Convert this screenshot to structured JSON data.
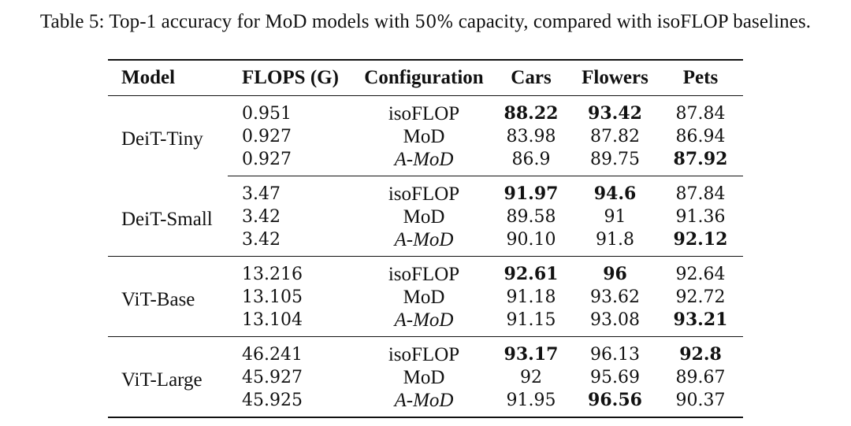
{
  "caption": {
    "prefix": "Table 5: Top-1 accuracy for MoD models with ",
    "percent": "50%",
    "suffix": " capacity, compared with isoFLOP baselines."
  },
  "table": {
    "headers": {
      "model": "Model",
      "flops": "FLOPS (G)",
      "configuration": "Configuration",
      "cars": "Cars",
      "flowers": "Flowers",
      "pets": "Pets"
    },
    "groups": [
      {
        "model": "DeiT-Tiny",
        "rows": [
          {
            "flops": "0.951",
            "config": "isoFLOP",
            "cars": "88.22",
            "flowers": "93.42",
            "pets": "87.84"
          },
          {
            "flops": "0.927",
            "config": "MoD",
            "cars": "83.98",
            "flowers": "87.82",
            "pets": "86.94"
          },
          {
            "flops": "0.927",
            "config": "A-MoD",
            "cars": "86.9",
            "flowers": "89.75",
            "pets": "87.92"
          }
        ]
      },
      {
        "model": "DeiT-Small",
        "rows": [
          {
            "flops": "3.47",
            "config": "isoFLOP",
            "cars": "91.97",
            "flowers": "94.6",
            "pets": "87.84"
          },
          {
            "flops": "3.42",
            "config": "MoD",
            "cars": "89.58",
            "flowers": "91",
            "pets": "91.36"
          },
          {
            "flops": "3.42",
            "config": "A-MoD",
            "cars": "90.10",
            "flowers": "91.8",
            "pets": "92.12"
          }
        ]
      },
      {
        "model": "ViT-Base",
        "rows": [
          {
            "flops": "13.216",
            "config": "isoFLOP",
            "cars": "92.61",
            "flowers": "96",
            "pets": "92.64"
          },
          {
            "flops": "13.105",
            "config": "MoD",
            "cars": "91.18",
            "flowers": "93.62",
            "pets": "92.72"
          },
          {
            "flops": "13.104",
            "config": "A-MoD",
            "cars": "91.15",
            "flowers": "93.08",
            "pets": "93.21"
          }
        ]
      },
      {
        "model": "ViT-Large",
        "rows": [
          {
            "flops": "46.241",
            "config": "isoFLOP",
            "cars": "93.17",
            "flowers": "96.13",
            "pets": "92.8"
          },
          {
            "flops": "45.927",
            "config": "MoD",
            "cars": "92",
            "flowers": "95.69",
            "pets": "89.67"
          },
          {
            "flops": "45.925",
            "config": "A-MoD",
            "cars": "91.95",
            "flowers": "96.56",
            "pets": "90.37"
          }
        ]
      }
    ]
  }
}
